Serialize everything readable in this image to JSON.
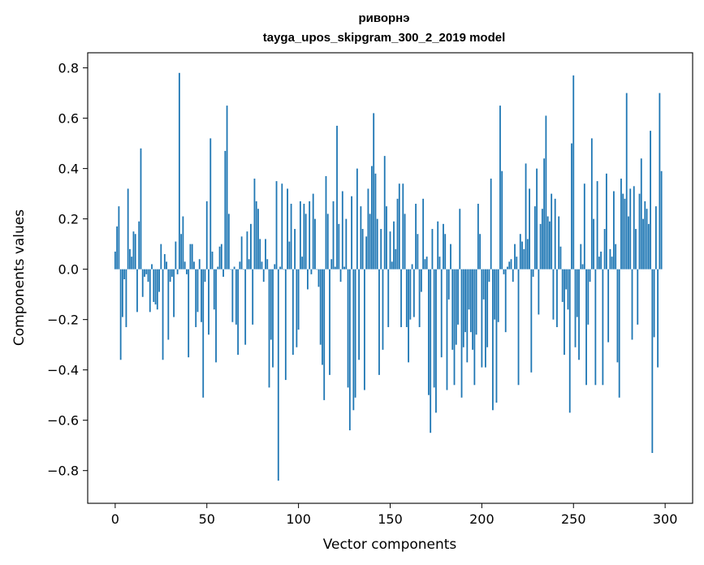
{
  "chart_data": {
    "type": "bar",
    "title": "риворнэ",
    "subtitle": "tayga_upos_skipgram_300_2_2019 model",
    "xlabel": "Vector components",
    "ylabel": "Components values",
    "xlim": [
      -15,
      315
    ],
    "ylim": [
      -0.93,
      0.86
    ],
    "xticks": [
      0,
      50,
      100,
      150,
      200,
      250,
      300
    ],
    "yticks": [
      -0.8,
      -0.6,
      -0.4,
      -0.2,
      0.0,
      0.2,
      0.4,
      0.6,
      0.8
    ],
    "xtick_labels": [
      "0",
      "50",
      "100",
      "150",
      "200",
      "250",
      "300"
    ],
    "ytick_labels": [
      "−0.8",
      "−0.6",
      "−0.4",
      "−0.2",
      "0.0",
      "0.2",
      "0.4",
      "0.6",
      "0.8"
    ],
    "grid": false,
    "bar_color": "#1f77b4",
    "values": [
      0.07,
      0.17,
      0.25,
      -0.36,
      -0.19,
      -0.04,
      -0.23,
      0.32,
      0.08,
      0.05,
      0.15,
      0.14,
      -0.17,
      0.19,
      0.48,
      -0.11,
      -0.03,
      -0.02,
      -0.05,
      -0.17,
      0.02,
      -0.13,
      -0.14,
      -0.16,
      -0.09,
      0.1,
      -0.36,
      0.06,
      0.03,
      -0.28,
      -0.05,
      -0.03,
      -0.19,
      0.11,
      -0.02,
      0.78,
      0.14,
      0.21,
      0.03,
      -0.02,
      -0.35,
      0.1,
      0.1,
      0.03,
      -0.23,
      -0.17,
      0.04,
      -0.21,
      -0.51,
      -0.05,
      0.27,
      -0.26,
      0.52,
      0.07,
      -0.16,
      -0.37,
      0.01,
      0.09,
      0.1,
      -0.03,
      0.47,
      0.65,
      0.22,
      0.0,
      -0.21,
      0.01,
      -0.22,
      -0.34,
      0.03,
      0.13,
      0.0,
      -0.3,
      0.15,
      0.04,
      0.18,
      -0.22,
      0.36,
      0.27,
      0.24,
      0.12,
      0.03,
      -0.05,
      0.12,
      0.04,
      -0.47,
      -0.28,
      -0.39,
      0.02,
      0.35,
      -0.84,
      0.01,
      0.34,
      0.0,
      -0.44,
      0.32,
      0.11,
      0.26,
      -0.34,
      0.16,
      -0.31,
      -0.24,
      0.27,
      0.05,
      0.26,
      0.22,
      -0.08,
      0.27,
      -0.02,
      0.3,
      0.2,
      0.0,
      -0.07,
      -0.3,
      -0.38,
      -0.52,
      0.37,
      0.22,
      -0.42,
      0.04,
      0.27,
      0.01,
      0.57,
      0.18,
      -0.05,
      0.31,
      0.01,
      0.2,
      -0.47,
      -0.64,
      0.29,
      -0.56,
      -0.51,
      0.4,
      -0.36,
      0.25,
      0.16,
      -0.48,
      0.13,
      0.32,
      0.22,
      0.41,
      0.62,
      0.38,
      0.2,
      -0.42,
      0.16,
      -0.32,
      0.45,
      0.25,
      -0.23,
      0.15,
      0.03,
      0.19,
      0.08,
      0.28,
      0.34,
      -0.23,
      0.34,
      0.22,
      -0.23,
      -0.37,
      -0.2,
      0.02,
      -0.19,
      0.26,
      0.14,
      -0.23,
      -0.09,
      0.28,
      0.04,
      0.05,
      -0.5,
      -0.65,
      0.16,
      -0.47,
      -0.57,
      0.19,
      0.05,
      -0.35,
      0.18,
      0.14,
      -0.48,
      -0.12,
      0.1,
      -0.32,
      -0.46,
      -0.3,
      -0.22,
      0.24,
      -0.51,
      -0.31,
      -0.25,
      -0.37,
      -0.16,
      -0.25,
      -0.32,
      -0.46,
      -0.26,
      0.26,
      0.14,
      -0.39,
      -0.12,
      -0.39,
      -0.31,
      -0.05,
      0.36,
      -0.56,
      -0.2,
      -0.53,
      -0.21,
      0.65,
      0.39,
      -0.02,
      -0.25,
      0.01,
      0.03,
      0.04,
      -0.05,
      0.1,
      0.05,
      -0.46,
      0.14,
      0.11,
      0.08,
      0.42,
      0.12,
      0.32,
      -0.41,
      -0.03,
      0.25,
      0.4,
      -0.18,
      0.18,
      0.24,
      0.44,
      0.61,
      0.21,
      0.19,
      0.3,
      -0.2,
      0.28,
      -0.23,
      0.21,
      0.09,
      -0.13,
      -0.34,
      -0.08,
      -0.16,
      -0.57,
      0.5,
      0.77,
      -0.31,
      -0.19,
      -0.36,
      0.1,
      0.02,
      0.34,
      -0.46,
      -0.22,
      -0.05,
      0.52,
      0.2,
      -0.46,
      0.35,
      0.05,
      0.07,
      -0.46,
      0.16,
      0.38,
      -0.29,
      0.08,
      0.05,
      0.31,
      0.1,
      -0.37,
      -0.51,
      0.36,
      0.3,
      0.28,
      0.7,
      0.21,
      0.32,
      -0.28,
      0.33,
      0.16,
      -0.22,
      0.3,
      0.44,
      0.2,
      0.27,
      0.24,
      0.18,
      0.55,
      -0.73,
      -0.27,
      0.25,
      -0.39,
      0.7,
      0.39
    ]
  }
}
